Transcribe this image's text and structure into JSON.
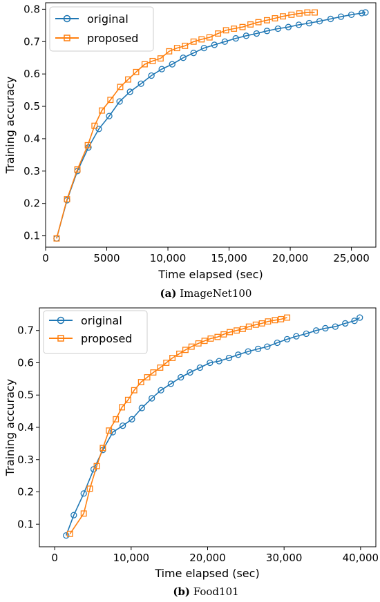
{
  "chart_data": [
    {
      "type": "line",
      "caption_letter": "(a)",
      "caption_text": " ImageNet100",
      "xlabel": "Time elapsed (sec)",
      "ylabel": "Training accuracy",
      "xlim": [
        0,
        27000
      ],
      "ylim": [
        0.065,
        0.82
      ],
      "xticks": [
        0,
        5000,
        10000,
        15000,
        20000,
        25000
      ],
      "xtick_labels": [
        "0",
        "5000",
        "10,000",
        "15,000",
        "20,000",
        "25,000"
      ],
      "yticks": [
        0.1,
        0.2,
        0.3,
        0.4,
        0.5,
        0.6,
        0.7,
        0.8
      ],
      "ytick_labels": [
        "0.1",
        "0.2",
        "0.3",
        "0.4",
        "0.5",
        "0.6",
        "0.7",
        "0.8"
      ],
      "grid": false,
      "legend_position": "top-left",
      "series": [
        {
          "name": "original",
          "color": "#1f77b4",
          "marker": "circle",
          "x": [
            900,
            1750,
            2600,
            3500,
            4350,
            5200,
            6050,
            6900,
            7800,
            8650,
            9500,
            10350,
            11250,
            12100,
            12950,
            13800,
            14650,
            15550,
            16400,
            17250,
            18100,
            19000,
            19850,
            20700,
            21550,
            22400,
            23300,
            24150,
            25000,
            25850,
            26150
          ],
          "y": [
            0.092,
            0.21,
            0.3,
            0.373,
            0.43,
            0.47,
            0.515,
            0.545,
            0.57,
            0.595,
            0.615,
            0.63,
            0.65,
            0.665,
            0.68,
            0.69,
            0.7,
            0.71,
            0.718,
            0.725,
            0.733,
            0.74,
            0.745,
            0.752,
            0.757,
            0.763,
            0.77,
            0.777,
            0.783,
            0.788,
            0.79
          ]
        },
        {
          "name": "proposed",
          "color": "#ff7f0e",
          "marker": "square",
          "x": [
            900,
            1750,
            2600,
            3450,
            4000,
            4600,
            5300,
            6100,
            6750,
            7400,
            8100,
            8750,
            9400,
            10100,
            10750,
            11400,
            12100,
            12750,
            13400,
            14100,
            14750,
            15400,
            16100,
            16750,
            17400,
            18100,
            18750,
            19400,
            20100,
            20750,
            21400,
            22000
          ],
          "y": [
            0.092,
            0.213,
            0.305,
            0.38,
            0.44,
            0.487,
            0.52,
            0.56,
            0.583,
            0.606,
            0.63,
            0.64,
            0.648,
            0.67,
            0.68,
            0.687,
            0.7,
            0.707,
            0.713,
            0.725,
            0.735,
            0.74,
            0.745,
            0.753,
            0.76,
            0.766,
            0.772,
            0.778,
            0.783,
            0.787,
            0.79,
            0.79
          ]
        }
      ]
    },
    {
      "type": "line",
      "caption_letter": "(b)",
      "caption_text": " Food101",
      "xlabel": "Time elapsed (sec)",
      "ylabel": "Training accuracy",
      "xlim": [
        -2000,
        42000
      ],
      "ylim": [
        0.03,
        0.77
      ],
      "xticks": [
        0,
        10000,
        20000,
        30000,
        40000
      ],
      "xtick_labels": [
        "0",
        "10,000",
        "20,000",
        "30,000",
        "40,000"
      ],
      "yticks": [
        0.1,
        0.2,
        0.3,
        0.4,
        0.5,
        0.6,
        0.7
      ],
      "ytick_labels": [
        "0.1",
        "0.2",
        "0.3",
        "0.4",
        "0.5",
        "0.6",
        "0.7"
      ],
      "grid": false,
      "legend_position": "top-left",
      "series": [
        {
          "name": "original",
          "color": "#1f77b4",
          "marker": "circle",
          "x": [
            1500,
            2500,
            3800,
            5100,
            6300,
            7600,
            8900,
            10100,
            11400,
            12700,
            13900,
            15200,
            16500,
            17700,
            19000,
            20300,
            21500,
            22800,
            24000,
            25300,
            26600,
            27800,
            29100,
            30400,
            31600,
            32900,
            34200,
            35400,
            36700,
            38000,
            39200,
            39900
          ],
          "y": [
            0.065,
            0.128,
            0.195,
            0.27,
            0.33,
            0.385,
            0.405,
            0.425,
            0.46,
            0.49,
            0.515,
            0.535,
            0.555,
            0.57,
            0.585,
            0.6,
            0.605,
            0.615,
            0.625,
            0.635,
            0.643,
            0.65,
            0.662,
            0.673,
            0.682,
            0.69,
            0.7,
            0.707,
            0.712,
            0.722,
            0.73,
            0.74
          ]
        },
        {
          "name": "proposed",
          "color": "#ff7f0e",
          "marker": "square",
          "x": [
            2000,
            3800,
            4600,
            5500,
            6300,
            7100,
            8000,
            8800,
            9600,
            10400,
            11300,
            12100,
            12900,
            13800,
            14600,
            15400,
            16300,
            17100,
            17900,
            18800,
            19600,
            20400,
            21300,
            22100,
            22900,
            23800,
            24600,
            25400,
            26300,
            27100,
            27900,
            28800,
            29600,
            30400
          ],
          "y": [
            0.07,
            0.133,
            0.21,
            0.28,
            0.336,
            0.39,
            0.425,
            0.462,
            0.485,
            0.515,
            0.54,
            0.555,
            0.57,
            0.585,
            0.6,
            0.615,
            0.628,
            0.64,
            0.65,
            0.66,
            0.668,
            0.675,
            0.68,
            0.688,
            0.695,
            0.7,
            0.705,
            0.712,
            0.718,
            0.722,
            0.728,
            0.732,
            0.735,
            0.74
          ]
        }
      ]
    }
  ]
}
